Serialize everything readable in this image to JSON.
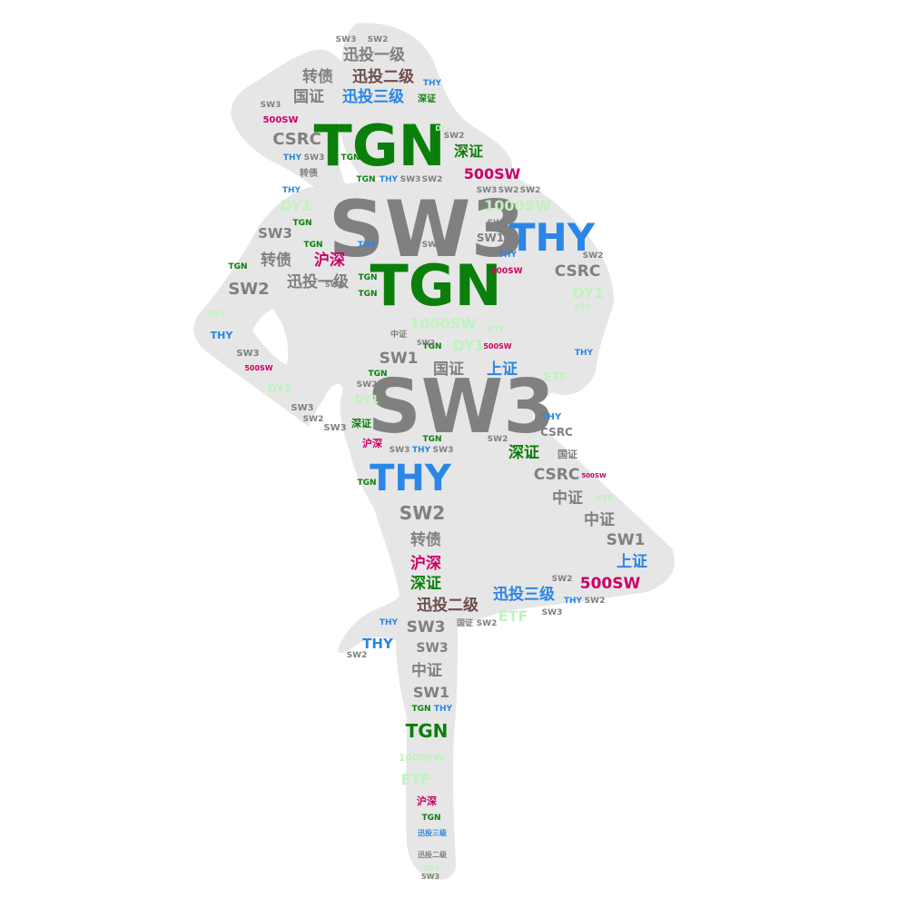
{
  "palette": {
    "gray": "#808080",
    "green": "#0b7f0b",
    "blue": "#2b86e6",
    "crimson": "#cc0066",
    "lightgreen": "#bff2bf",
    "brown": "#6e4d4d",
    "silhouette": "#e6e6e6"
  },
  "words": [
    {
      "text": "SW3",
      "color": "gray"
    },
    {
      "text": "SW3",
      "color": "gray"
    },
    {
      "text": "TGN",
      "color": "green"
    },
    {
      "text": "TGN",
      "color": "green"
    },
    {
      "text": "THY",
      "color": "blue"
    },
    {
      "text": "THY",
      "color": "blue"
    },
    {
      "text": "迅投一级",
      "color": "gray"
    },
    {
      "text": "转债",
      "color": "gray"
    },
    {
      "text": "迅投二级",
      "color": "brown"
    },
    {
      "text": "国证",
      "color": "gray"
    },
    {
      "text": "迅投三级",
      "color": "blue"
    },
    {
      "text": "深证",
      "color": "green"
    },
    {
      "text": "THY",
      "color": "blue"
    },
    {
      "text": "SW3",
      "color": "gray"
    },
    {
      "text": "SW2",
      "color": "gray"
    },
    {
      "text": "SW3",
      "color": "gray"
    },
    {
      "text": "500SW",
      "color": "crimson"
    },
    {
      "text": "CSRC",
      "color": "gray"
    },
    {
      "text": "深证",
      "color": "green"
    },
    {
      "text": "SW2",
      "color": "gray"
    },
    {
      "text": "THY",
      "color": "blue"
    },
    {
      "text": "SW3",
      "color": "gray"
    },
    {
      "text": "TGN",
      "color": "green"
    },
    {
      "text": "转债",
      "color": "gray"
    },
    {
      "text": "TGN",
      "color": "green"
    },
    {
      "text": "THY",
      "color": "blue"
    },
    {
      "text": "SW3",
      "color": "gray"
    },
    {
      "text": "SW2",
      "color": "gray"
    },
    {
      "text": "500SW",
      "color": "crimson"
    },
    {
      "text": "THY",
      "color": "blue"
    },
    {
      "text": "SW3",
      "color": "gray"
    },
    {
      "text": "SW2",
      "color": "gray"
    },
    {
      "text": "SW2",
      "color": "gray"
    },
    {
      "text": "DY1",
      "color": "lightgreen"
    },
    {
      "text": "1000SW",
      "color": "lightgreen"
    },
    {
      "text": "TGN",
      "color": "green"
    },
    {
      "text": "SW3",
      "color": "gray"
    },
    {
      "text": "SW3",
      "color": "gray"
    },
    {
      "text": "SW1",
      "color": "gray"
    },
    {
      "text": "TGN",
      "color": "green"
    },
    {
      "text": "THY",
      "color": "blue"
    },
    {
      "text": "SW2",
      "color": "gray"
    },
    {
      "text": "THY",
      "color": "blue"
    },
    {
      "text": "SW2",
      "color": "gray"
    },
    {
      "text": "TGN",
      "color": "green"
    },
    {
      "text": "转债",
      "color": "gray"
    },
    {
      "text": "沪深",
      "color": "crimson"
    },
    {
      "text": "500SW",
      "color": "crimson"
    },
    {
      "text": "CSRC",
      "color": "gray"
    },
    {
      "text": "SW2",
      "color": "gray"
    },
    {
      "text": "迅投一级",
      "color": "gray"
    },
    {
      "text": "TGN",
      "color": "green"
    },
    {
      "text": "DY1",
      "color": "lightgreen"
    },
    {
      "text": "ETF",
      "color": "lightgreen"
    },
    {
      "text": "TGN",
      "color": "green"
    },
    {
      "text": "DY1",
      "color": "lightgreen"
    },
    {
      "text": "1000SW",
      "color": "lightgreen"
    },
    {
      "text": "ETF",
      "color": "lightgreen"
    },
    {
      "text": "THY",
      "color": "blue"
    },
    {
      "text": "中证",
      "color": "gray"
    },
    {
      "text": "DY1",
      "color": "lightgreen"
    },
    {
      "text": "500SW",
      "color": "crimson"
    },
    {
      "text": "TGN",
      "color": "green"
    },
    {
      "text": "SW3",
      "color": "gray"
    },
    {
      "text": "SW1",
      "color": "gray"
    },
    {
      "text": "THY",
      "color": "blue"
    },
    {
      "text": "500SW",
      "color": "crimson"
    },
    {
      "text": "国证",
      "color": "gray"
    },
    {
      "text": "上证",
      "color": "blue"
    },
    {
      "text": "ETF",
      "color": "lightgreen"
    },
    {
      "text": "TGN",
      "color": "green"
    },
    {
      "text": "SW2",
      "color": "gray"
    },
    {
      "text": "DY1",
      "color": "lightgreen"
    },
    {
      "text": "DY1",
      "color": "lightgreen"
    },
    {
      "text": "SW3",
      "color": "gray"
    },
    {
      "text": "SW2",
      "color": "gray"
    },
    {
      "text": "SW3",
      "color": "gray"
    },
    {
      "text": "深证",
      "color": "green"
    },
    {
      "text": "THY",
      "color": "blue"
    },
    {
      "text": "CSRC",
      "color": "gray"
    },
    {
      "text": "TGN",
      "color": "green"
    },
    {
      "text": "沪深",
      "color": "crimson"
    },
    {
      "text": "SW3",
      "color": "gray"
    },
    {
      "text": "THY",
      "color": "blue"
    },
    {
      "text": "SW3",
      "color": "gray"
    },
    {
      "text": "SW2",
      "color": "gray"
    },
    {
      "text": "深证",
      "color": "green"
    },
    {
      "text": "国证",
      "color": "gray"
    },
    {
      "text": "TGN",
      "color": "green"
    },
    {
      "text": "CSRC",
      "color": "gray"
    },
    {
      "text": "500SW",
      "color": "crimson"
    },
    {
      "text": "中证",
      "color": "gray"
    },
    {
      "text": "ETF",
      "color": "lightgreen"
    },
    {
      "text": "SW2",
      "color": "gray"
    },
    {
      "text": "中证",
      "color": "gray"
    },
    {
      "text": "SW1",
      "color": "gray"
    },
    {
      "text": "转债",
      "color": "gray"
    },
    {
      "text": "上证",
      "color": "blue"
    },
    {
      "text": "沪深",
      "color": "crimson"
    },
    {
      "text": "SW2",
      "color": "gray"
    },
    {
      "text": "500SW",
      "color": "crimson"
    },
    {
      "text": "深证",
      "color": "green"
    },
    {
      "text": "迅投三级",
      "color": "blue"
    },
    {
      "text": "THY",
      "color": "blue"
    },
    {
      "text": "SW2",
      "color": "gray"
    },
    {
      "text": "迅投二级",
      "color": "brown"
    },
    {
      "text": "SW3",
      "color": "gray"
    },
    {
      "text": "ETF",
      "color": "lightgreen"
    },
    {
      "text": "THY",
      "color": "blue"
    },
    {
      "text": "国证",
      "color": "gray"
    },
    {
      "text": "SW2",
      "color": "gray"
    },
    {
      "text": "SW3",
      "color": "gray"
    },
    {
      "text": "THY",
      "color": "blue"
    },
    {
      "text": "SW3",
      "color": "gray"
    },
    {
      "text": "SW2",
      "color": "gray"
    },
    {
      "text": "中证",
      "color": "gray"
    },
    {
      "text": "SW1",
      "color": "gray"
    },
    {
      "text": "TGN",
      "color": "green"
    },
    {
      "text": "THY",
      "color": "blue"
    },
    {
      "text": "TGN",
      "color": "green"
    },
    {
      "text": "1000SW",
      "color": "lightgreen"
    },
    {
      "text": "ETF",
      "color": "lightgreen"
    },
    {
      "text": "沪深",
      "color": "crimson"
    },
    {
      "text": "TGN",
      "color": "green"
    },
    {
      "text": "迅投三级",
      "color": "blue"
    },
    {
      "text": "迅投二级",
      "color": "gray"
    },
    {
      "text": "DY1",
      "color": "lightgreen"
    },
    {
      "text": "SW2",
      "color": "gray"
    },
    {
      "text": "SW3",
      "color": "gray"
    },
    {
      "text": "DY1",
      "color": "lightgreen"
    },
    {
      "text": "SW3",
      "color": "gray"
    }
  ]
}
